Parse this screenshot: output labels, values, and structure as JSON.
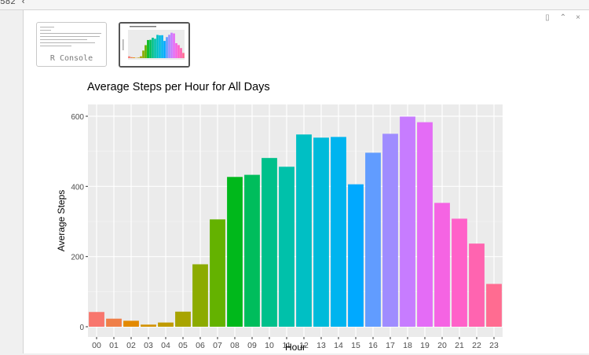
{
  "editor": {
    "line_info": "582 ‹"
  },
  "viewer_controls": [
    {
      "name": "popout-icon",
      "glyph": "▯"
    },
    {
      "name": "maximize-icon",
      "glyph": "⌃"
    },
    {
      "name": "close-icon",
      "glyph": "×"
    }
  ],
  "thumbnails": [
    {
      "label": "R Console",
      "active": false
    },
    {
      "label": "",
      "active": true
    }
  ],
  "chart_data": {
    "type": "bar",
    "title": "Average Steps per Hour for All Days",
    "xlabel": "Hour",
    "ylabel": "Average Steps",
    "categories": [
      "00",
      "01",
      "02",
      "03",
      "04",
      "05",
      "06",
      "07",
      "08",
      "09",
      "10",
      "11",
      "12",
      "13",
      "14",
      "15",
      "16",
      "17",
      "18",
      "19",
      "20",
      "21",
      "22",
      "23"
    ],
    "values": [
      42,
      23,
      17,
      6,
      12,
      43,
      178,
      306,
      427,
      433,
      481,
      456,
      548,
      539,
      541,
      406,
      496,
      550,
      599,
      583,
      353,
      308,
      237,
      122
    ],
    "yticks": [
      0,
      200,
      400,
      600
    ],
    "ylim": [
      0,
      630
    ],
    "grid": true,
    "legend": "none",
    "colors": [
      "#F8766D",
      "#EF7F49",
      "#E38900",
      "#D39200",
      "#C09B00",
      "#A8A400",
      "#8CAB00",
      "#64B200",
      "#00B81B",
      "#00BD5C",
      "#00C08B",
      "#00C1AA",
      "#00BFC4",
      "#00BBDA",
      "#00B4EF",
      "#00A9FF",
      "#619CFF",
      "#9F8CFF",
      "#C77CFF",
      "#E46CF6",
      "#F564E3",
      "#FF61C9",
      "#FF64B0",
      "#FF6C91"
    ],
    "panel_bg": "#ebebeb",
    "grid_major": "#ffffff"
  }
}
